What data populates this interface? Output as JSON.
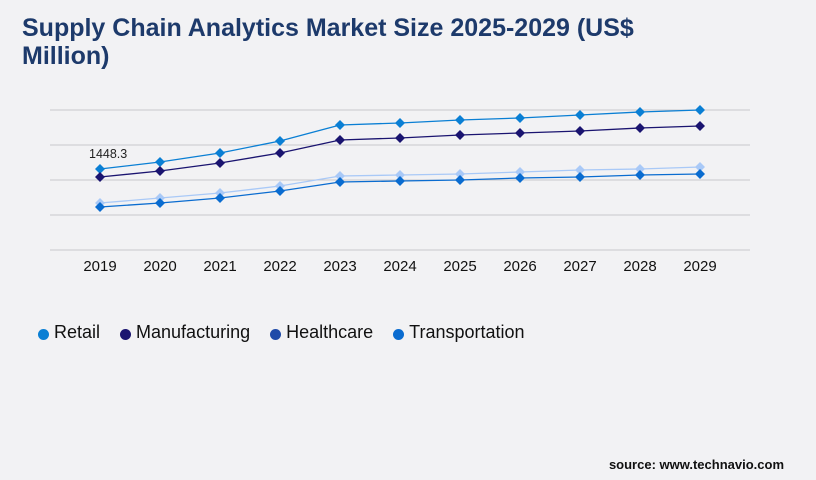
{
  "chart_data": {
    "type": "line",
    "title": "Supply Chain Analytics Market Size 2025-2029 (US$ Million)",
    "categories": [
      "2019",
      "2020",
      "2021",
      "2022",
      "2023",
      "2024",
      "2025",
      "2026",
      "2027",
      "2028",
      "2029"
    ],
    "ylim": [
      0,
      2503
    ],
    "grid": true,
    "legend_position": "bottom-left",
    "data_labels": [
      {
        "series": "Retail",
        "category": "2019",
        "text": "1448.3"
      }
    ],
    "series": [
      {
        "name": "Retail",
        "color": "#0a7fd4",
        "marker_color": "#0a7fd4",
        "values": [
          1448.3,
          1573,
          1734,
          1949,
          2235,
          2271,
          2324,
          2360,
          2414,
          2467,
          2503
        ]
      },
      {
        "name": "Manufacturing",
        "color": "#1a1470",
        "marker_color": "#1a1470",
        "values": [
          1305,
          1413,
          1556,
          1734,
          1967,
          2003,
          2056,
          2092,
          2128,
          2181,
          2217
        ]
      },
      {
        "name": "Healthcare",
        "color": "#a9c9f7",
        "marker_color": "#1e4aa8",
        "values": [
          840,
          930,
          1019,
          1144,
          1323,
          1341,
          1359,
          1395,
          1430,
          1448,
          1484
        ]
      },
      {
        "name": "Transportation",
        "color": "#0a6cd0",
        "marker_color": "#0a6cd0",
        "values": [
          769,
          840,
          930,
          1055,
          1216,
          1234,
          1252,
          1287,
          1305,
          1341,
          1359
        ]
      }
    ]
  },
  "source": "source: www.technavio.com"
}
